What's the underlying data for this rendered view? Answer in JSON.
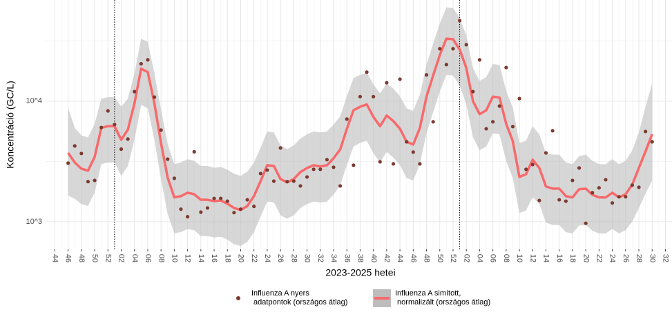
{
  "chart_data": {
    "type": "line",
    "x_label": "2023-2025 hetei",
    "y_label": "Koncentráció (GC/L)",
    "log_y": true,
    "grid": true,
    "xlim": [
      -1.5,
      93.2
    ],
    "ylim": [
      590,
      69000
    ],
    "yticks": [
      {
        "value": 1000,
        "label": "10^3"
      },
      {
        "value": 10000,
        "label": "10^4"
      }
    ],
    "xticks": [
      {
        "value": 0,
        "label": "44"
      },
      {
        "value": 2,
        "label": "46"
      },
      {
        "value": 4,
        "label": "48"
      },
      {
        "value": 6,
        "label": "50"
      },
      {
        "value": 8,
        "label": "52"
      },
      {
        "value": 10,
        "label": "02"
      },
      {
        "value": 12,
        "label": "04"
      },
      {
        "value": 14,
        "label": "06"
      },
      {
        "value": 16,
        "label": "08"
      },
      {
        "value": 18,
        "label": "10"
      },
      {
        "value": 20,
        "label": "12"
      },
      {
        "value": 22,
        "label": "14"
      },
      {
        "value": 24,
        "label": "16"
      },
      {
        "value": 26,
        "label": "18"
      },
      {
        "value": 28,
        "label": "20"
      },
      {
        "value": 30,
        "label": "22"
      },
      {
        "value": 32,
        "label": "24"
      },
      {
        "value": 34,
        "label": "26"
      },
      {
        "value": 36,
        "label": "28"
      },
      {
        "value": 38,
        "label": "30"
      },
      {
        "value": 40,
        "label": "32"
      },
      {
        "value": 42,
        "label": "34"
      },
      {
        "value": 44,
        "label": "36"
      },
      {
        "value": 46,
        "label": "38"
      },
      {
        "value": 48,
        "label": "40"
      },
      {
        "value": 50,
        "label": "42"
      },
      {
        "value": 52,
        "label": "44"
      },
      {
        "value": 54,
        "label": "46"
      },
      {
        "value": 56,
        "label": "48"
      },
      {
        "value": 58,
        "label": "50"
      },
      {
        "value": 60,
        "label": "52"
      },
      {
        "value": 62,
        "label": "02"
      },
      {
        "value": 64,
        "label": "04"
      },
      {
        "value": 66,
        "label": "06"
      },
      {
        "value": 68,
        "label": "08"
      },
      {
        "value": 70,
        "label": "10"
      },
      {
        "value": 72,
        "label": "12"
      },
      {
        "value": 74,
        "label": "14"
      },
      {
        "value": 76,
        "label": "16"
      },
      {
        "value": 78,
        "label": "18"
      },
      {
        "value": 80,
        "label": "20"
      },
      {
        "value": 82,
        "label": "22"
      },
      {
        "value": 84,
        "label": "24"
      },
      {
        "value": 86,
        "label": "26"
      },
      {
        "value": 88,
        "label": "28"
      },
      {
        "value": 90,
        "label": "30"
      },
      {
        "value": 92,
        "label": "32"
      }
    ],
    "vlines": [
      9,
      61
    ],
    "x": [
      2,
      3,
      4,
      5,
      6,
      7,
      8,
      9,
      10,
      11,
      12,
      13,
      14,
      15,
      16,
      17,
      18,
      19,
      20,
      21,
      22,
      23,
      24,
      25,
      26,
      27,
      28,
      29,
      30,
      31,
      32,
      33,
      34,
      35,
      36,
      37,
      38,
      39,
      40,
      41,
      42,
      43,
      44,
      45,
      46,
      47,
      48,
      49,
      50,
      51,
      52,
      53,
      54,
      55,
      56,
      57,
      58,
      59,
      60,
      61,
      62,
      63,
      64,
      65,
      66,
      67,
      68,
      69,
      70,
      71,
      72,
      73,
      74,
      75,
      76,
      77,
      78,
      79,
      80,
      81,
      82,
      83,
      84,
      85,
      86,
      87,
      88,
      89,
      90
    ],
    "series": [
      {
        "name": "Influenza A nyers\n adatpontok (országos átlag)",
        "color": "#7b3a2e",
        "kind": "points",
        "values": [
          3060,
          4250,
          3680,
          2150,
          2200,
          6050,
          8300,
          6400,
          4000,
          4850,
          12000,
          20400,
          22000,
          10800,
          5750,
          3300,
          2290,
          1270,
          1100,
          3800,
          1200,
          1300,
          1560,
          1560,
          1480,
          1190,
          1270,
          1520,
          1340,
          2510,
          2680,
          2170,
          4090,
          2150,
          2170,
          1980,
          2350,
          2720,
          2720,
          3270,
          2830,
          1980,
          7100,
          2940,
          10900,
          17400,
          10900,
          3140,
          14200,
          3020,
          15200,
          4600,
          3780,
          3020,
          16500,
          6740,
          27200,
          20100,
          27200,
          46600,
          29400,
          12000,
          22000,
          5900,
          6740,
          9100,
          19000,
          6150,
          10500,
          2720,
          2980,
          1500,
          3720,
          5680,
          1520,
          1480,
          2200,
          2790,
          970,
          1740,
          1910,
          2230,
          1430,
          1610,
          1610,
          2010,
          1930,
          5600,
          4600
        ]
      },
      {
        "name": "Influenza A simított,\n normalizált (országos átlag)",
        "color": "#f8696b",
        "band_color": "#bdbdbd",
        "kind": "smooth",
        "values": [
          3720,
          3100,
          2750,
          2650,
          3450,
          6000,
          6200,
          6200,
          4780,
          5800,
          9600,
          18600,
          17400,
          9600,
          4480,
          2320,
          1590,
          1630,
          1740,
          1690,
          1520,
          1520,
          1480,
          1500,
          1410,
          1300,
          1250,
          1350,
          1630,
          2170,
          2940,
          2900,
          2260,
          2120,
          2260,
          2580,
          2790,
          2940,
          2870,
          2940,
          3360,
          3980,
          5900,
          8400,
          8980,
          9400,
          7400,
          6200,
          7600,
          6830,
          5900,
          4600,
          4370,
          6000,
          10900,
          16300,
          24100,
          33000,
          32600,
          26800,
          18800,
          10000,
          7800,
          8400,
          10900,
          10700,
          6500,
          4660,
          2350,
          2480,
          3270,
          2790,
          1960,
          1880,
          1880,
          1630,
          1590,
          1860,
          1880,
          1670,
          1590,
          1590,
          1740,
          1590,
          1690,
          2030,
          2790,
          3830,
          5320
        ],
        "lower": [
          1650,
          1550,
          1400,
          1350,
          1750,
          3000,
          3100,
          3100,
          2400,
          2900,
          4800,
          9300,
          8700,
          4800,
          2250,
          1160,
          800,
          820,
          870,
          850,
          760,
          760,
          740,
          750,
          710,
          650,
          630,
          680,
          820,
          1100,
          1470,
          1450,
          1130,
          1060,
          1130,
          1300,
          1400,
          1470,
          1440,
          1470,
          1680,
          2000,
          2950,
          4200,
          4500,
          4700,
          3700,
          3100,
          3800,
          3400,
          2950,
          2300,
          2200,
          3000,
          5400,
          8100,
          12000,
          16500,
          16300,
          13400,
          9400,
          5000,
          3900,
          4200,
          5400,
          5300,
          3200,
          2300,
          1180,
          1240,
          1600,
          1400,
          980,
          940,
          940,
          820,
          800,
          930,
          940,
          840,
          800,
          800,
          870,
          800,
          850,
          1000,
          1300,
          1700,
          2200
        ],
        "upper": [
          8800,
          6000,
          5200,
          5000,
          6500,
          10500,
          10800,
          10800,
          9000,
          10500,
          17000,
          33000,
          31000,
          17000,
          8500,
          4400,
          3000,
          3100,
          3300,
          3200,
          2900,
          2900,
          2800,
          2850,
          2700,
          2500,
          2400,
          2600,
          3100,
          4100,
          5600,
          5500,
          4300,
          4000,
          4300,
          4900,
          5300,
          5600,
          5500,
          5600,
          6400,
          7500,
          11000,
          15500,
          16500,
          17300,
          13800,
          11600,
          14000,
          12700,
          11000,
          8700,
          8300,
          11300,
          20000,
          30000,
          44000,
          60000,
          59000,
          49000,
          35000,
          18800,
          14700,
          15800,
          20300,
          20000,
          12200,
          8800,
          4500,
          4700,
          6200,
          5300,
          3700,
          3600,
          3600,
          3100,
          3000,
          3500,
          3600,
          3200,
          3000,
          3000,
          3300,
          3000,
          3200,
          3900,
          5500,
          9000,
          14000
        ]
      }
    ]
  }
}
